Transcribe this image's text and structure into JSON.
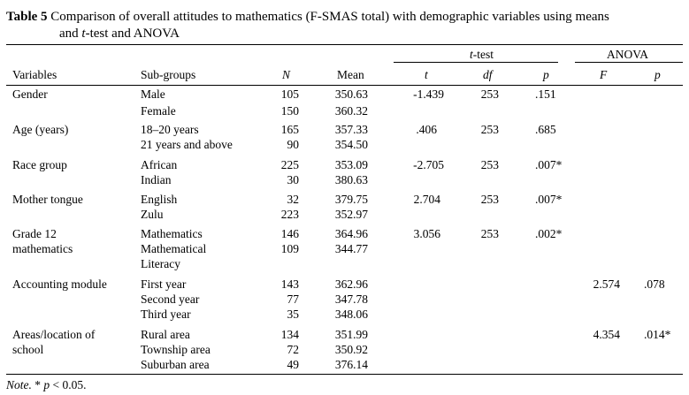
{
  "caption": {
    "label": "Table 5",
    "line1": "Comparison of overall attitudes to mathematics (F-SMAS total) with demographic variables using means",
    "line2_pre": "and ",
    "line2_t": "t",
    "line2_post": "-test and ANOVA"
  },
  "groups": {
    "ttest_t": "t",
    "ttest_rest": "-test",
    "anova": "ANOVA"
  },
  "headers": {
    "variables": "Variables",
    "subgroups": "Sub-groups",
    "n": "N",
    "mean": "Mean",
    "t": "t",
    "df": "df",
    "p": "p",
    "F": "F",
    "p2": "p"
  },
  "rows": {
    "gender": {
      "var": "Gender",
      "sub": [
        "Male",
        "Female"
      ],
      "n": [
        "105",
        "150"
      ],
      "mean": [
        "350.63",
        "360.32"
      ],
      "t": "-1.439",
      "df": "253",
      "p": ".151"
    },
    "age": {
      "var": "Age (years)",
      "sub": [
        "18–20 years",
        "21 years and above"
      ],
      "n": [
        "165",
        "90"
      ],
      "mean": [
        "357.33",
        "354.50"
      ],
      "t": ".406",
      "df": "253",
      "p": ".685"
    },
    "race": {
      "var": "Race group",
      "sub": [
        "African",
        "Indian"
      ],
      "n": [
        "225",
        "30"
      ],
      "mean": [
        "353.09",
        "380.63"
      ],
      "t": "-2.705",
      "df": "253",
      "p": ".007*"
    },
    "tongue": {
      "var": "Mother tongue",
      "sub": [
        "English",
        "Zulu"
      ],
      "n": [
        "32",
        "223"
      ],
      "mean": [
        "379.75",
        "352.97"
      ],
      "t": "2.704",
      "df": "253",
      "p": ".007*"
    },
    "grade": {
      "var1": "Grade 12",
      "var2": "mathematics",
      "sub": [
        "Mathematics",
        "Mathematical",
        "Literacy"
      ],
      "n": [
        "146",
        "109"
      ],
      "mean": [
        "364.96",
        "344.77"
      ],
      "t": "3.056",
      "df": "253",
      "p": ".002*"
    },
    "accounting": {
      "var": "Accounting module",
      "sub": [
        "First year",
        "Second year",
        "Third year"
      ],
      "n": [
        "143",
        "77",
        "35"
      ],
      "mean": [
        "362.96",
        "347.78",
        "348.06"
      ],
      "F": "2.574",
      "p2": ".078"
    },
    "areas": {
      "var1": "Areas/location of",
      "var2": "school",
      "sub": [
        "Rural area",
        "Township area",
        "Suburban area"
      ],
      "n": [
        "134",
        "72",
        "49"
      ],
      "mean": [
        "351.99",
        "350.92",
        "376.14"
      ],
      "F": "4.354",
      "p2": ".014*"
    }
  },
  "note": {
    "label": "Note.",
    "text": " * ",
    "p": "p",
    "rest": " < 0.05."
  }
}
